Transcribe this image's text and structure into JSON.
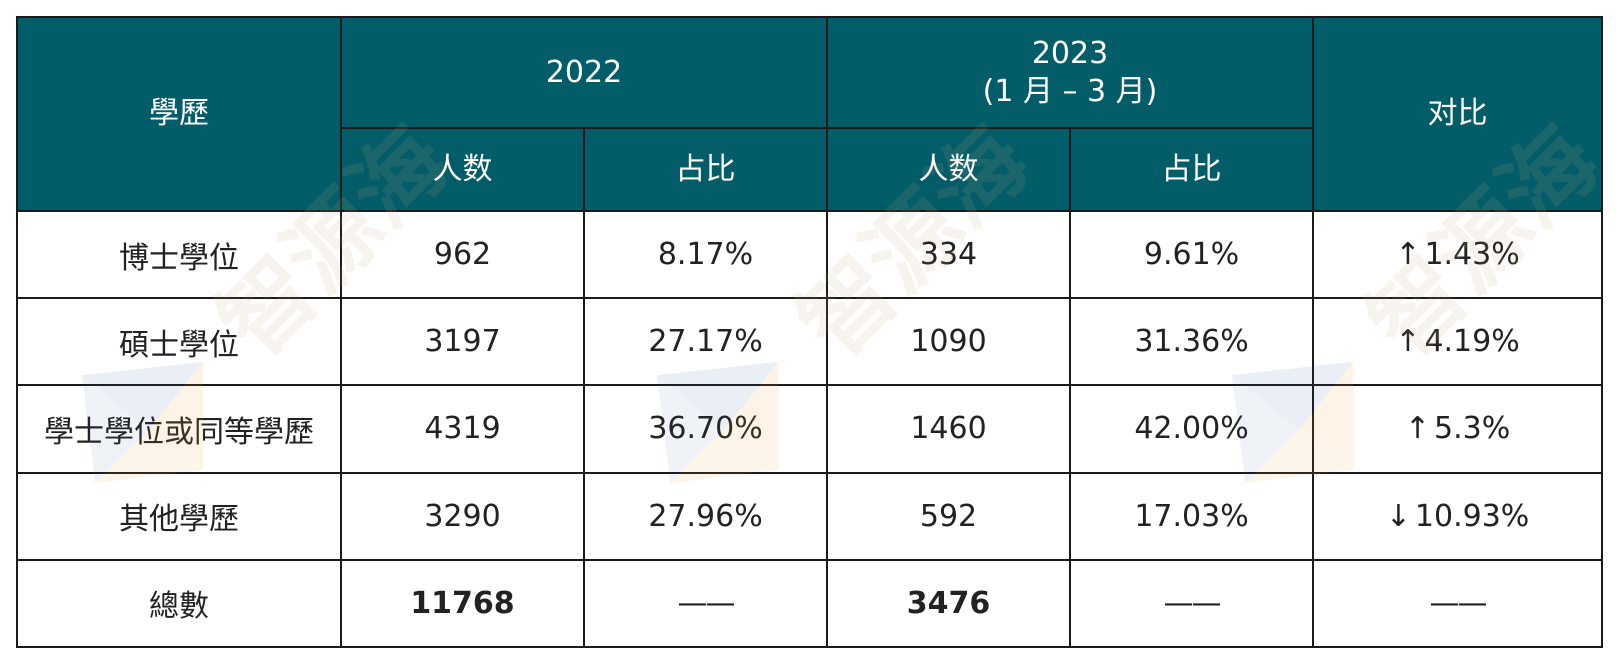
{
  "header": {
    "education": "學歷",
    "year_2022": "2022",
    "year_2023": "2023",
    "year_2023_range": "(1 月 – 3 月)",
    "compare": "对比",
    "count": "人数",
    "share": "占比"
  },
  "rows": [
    {
      "label": "博士學位",
      "c2022": "962",
      "p2022": "8.17%",
      "c2023": "334",
      "p2023": "9.61%",
      "arrow": "↑",
      "change": "1.43%",
      "direction": "up"
    },
    {
      "label": "碩士學位",
      "c2022": "3197",
      "p2022": "27.17%",
      "c2023": "1090",
      "p2023": "31.36%",
      "arrow": "↑",
      "change": "4.19%",
      "direction": "up"
    },
    {
      "label": "學士學位或同等學歷",
      "c2022": "4319",
      "p2022": "36.70%",
      "c2023": "1460",
      "p2023": "42.00%",
      "arrow": "↑",
      "change": "5.3%",
      "direction": "up"
    },
    {
      "label": "其他學歷",
      "c2022": "3290",
      "p2022": "27.96%",
      "c2023": "592",
      "p2023": "17.03%",
      "arrow": "↓",
      "change": "10.93%",
      "direction": "down"
    }
  ],
  "total": {
    "label": "總數",
    "c2022": "11768",
    "p2022": "——",
    "c2023": "3476",
    "p2023": "——",
    "change": "——"
  },
  "watermark": {
    "text": "智源海",
    "color_text": "#bea578",
    "logo_colors": [
      "#2f5d9a",
      "#f0a035"
    ]
  },
  "colors": {
    "header_bg": "#035d69",
    "down_arrow": "#4a86c8"
  }
}
